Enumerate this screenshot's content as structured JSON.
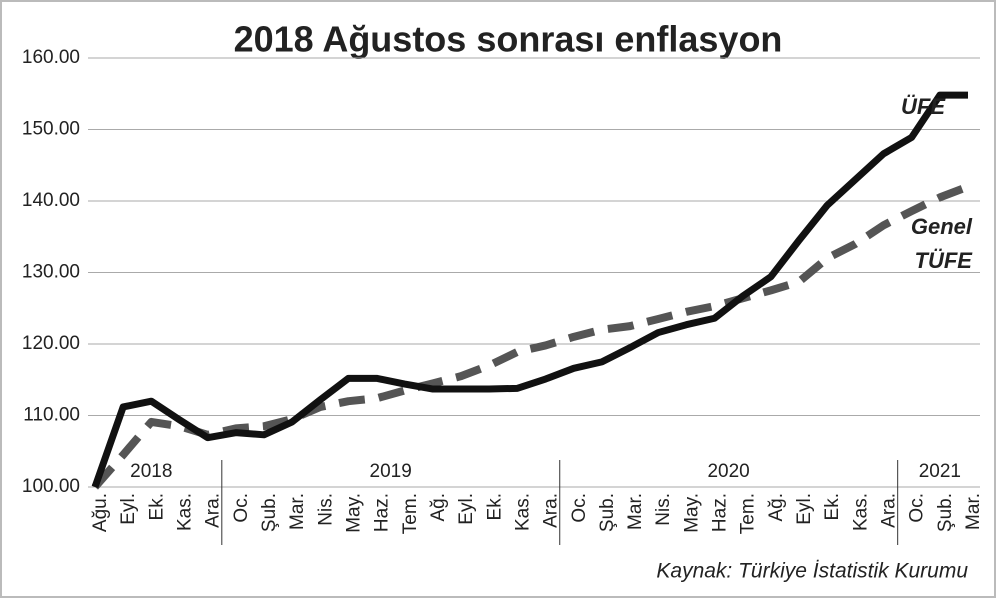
{
  "chart_data": {
    "type": "line",
    "title": "2018 Ağustos sonrası enflasyon",
    "categories": [
      "Ağu.",
      "Eyl.",
      "Ek.",
      "Kas.",
      "Ara.",
      "Oc.",
      "Şub.",
      "Mar.",
      "Nis.",
      "May.",
      "Haz.",
      "Tem.",
      "Ağ.",
      "Eyl.",
      "Ek.",
      "Kas.",
      "Ara.",
      "Oc.",
      "Şub.",
      "Mar.",
      "Nis.",
      "May.",
      "Haz.",
      "Tem.",
      "Ağ.",
      "Eyl.",
      "Ek.",
      "Kas.",
      "Ara.",
      "Oc.",
      "Şub.",
      "Mar."
    ],
    "years": [
      "2018",
      "2019",
      "2020",
      "2021"
    ],
    "series": [
      {
        "name": "ÜFE",
        "color": "#111111",
        "dashed": false,
        "values": [
          100,
          111.2,
          112.0,
          109.4,
          106.9,
          107.6,
          107.3,
          109.1,
          112.2,
          115.2,
          115.2,
          114.4,
          113.7,
          113.7,
          113.7,
          113.8,
          115.1,
          116.6,
          117.5,
          119.5,
          121.6,
          122.7,
          123.6,
          126.7,
          129.4,
          134.5,
          139.4,
          143.0,
          146.6,
          148.9,
          154.8,
          154.8
        ]
      },
      {
        "name": "Genel TÜFE",
        "name_lines": [
          "Genel",
          "TÜFE"
        ],
        "color": "#555555",
        "dashed": true,
        "values": [
          100,
          104.5,
          109.1,
          108.5,
          107.3,
          108.2,
          108.5,
          109.5,
          111.2,
          112.0,
          112.4,
          113.5,
          114.5,
          115.5,
          117.0,
          118.9,
          119.8,
          121.0,
          122.0,
          122.5,
          123.5,
          124.5,
          125.3,
          126.4,
          127.5,
          128.7,
          132.0,
          134.0,
          136.6,
          138.6,
          140.5,
          142.0
        ]
      }
    ],
    "ylim": [
      100,
      160
    ],
    "yticks": [
      {
        "value": 100,
        "label": "100.00"
      },
      {
        "value": 110,
        "label": "110.00"
      },
      {
        "value": 120,
        "label": "120.00"
      },
      {
        "value": 130,
        "label": "130.00"
      },
      {
        "value": 140,
        "label": "140.00"
      },
      {
        "value": 150,
        "label": "150.00"
      },
      {
        "value": 160,
        "label": "160.00"
      }
    ],
    "grid": true,
    "source": "Kaynak: Türkiye İstatistik Kurumu"
  }
}
